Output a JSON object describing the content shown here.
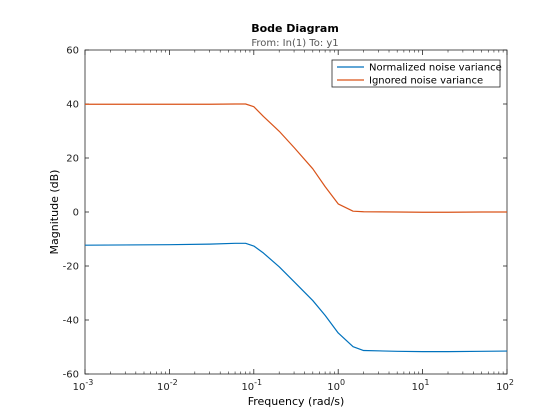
{
  "chart_data": {
    "type": "line",
    "title": "Bode Diagram",
    "subtitle": "From: In(1)  To: y1",
    "xlabel": "Frequency  (rad/s)",
    "ylabel": "Magnitude (dB)",
    "xscale": "log",
    "xlim": [
      0.001,
      100
    ],
    "ylim": [
      -60,
      60
    ],
    "x_tick_labels": [
      {
        "base": "10",
        "exp": "-3"
      },
      {
        "base": "10",
        "exp": "-2"
      },
      {
        "base": "10",
        "exp": "-1"
      },
      {
        "base": "10",
        "exp": "0"
      },
      {
        "base": "10",
        "exp": "1"
      },
      {
        "base": "10",
        "exp": "2"
      }
    ],
    "y_ticks": [
      -60,
      -40,
      -20,
      0,
      20,
      40,
      60
    ],
    "grid": false,
    "legend_position": "top-right",
    "series": [
      {
        "name": "Normalized noise variance",
        "color": "#0072BD",
        "x": [
          0.001,
          0.01,
          0.03,
          0.06,
          0.08,
          0.1,
          0.13,
          0.2,
          0.3,
          0.5,
          0.7,
          1.0,
          1.5,
          2.0,
          5,
          10,
          20,
          50,
          100
        ],
        "y": [
          -12.3,
          -12.1,
          -11.9,
          -11.6,
          -11.6,
          -12.6,
          -15.2,
          -20.3,
          -25.8,
          -32.8,
          -38.3,
          -44.8,
          -49.9,
          -51.3,
          -51.6,
          -51.7,
          -51.7,
          -51.6,
          -51.5
        ]
      },
      {
        "name": "Ignored noise variance",
        "color": "#D95319",
        "x": [
          0.001,
          0.01,
          0.03,
          0.06,
          0.08,
          0.1,
          0.13,
          0.2,
          0.3,
          0.5,
          0.7,
          1.0,
          1.5,
          2.0,
          5,
          10,
          20,
          50,
          100
        ],
        "y": [
          39.9,
          39.9,
          39.9,
          40.0,
          40.0,
          39.0,
          35.4,
          29.9,
          23.9,
          16.0,
          9.4,
          3.0,
          0.3,
          0.1,
          0.0,
          -0.1,
          -0.1,
          0.0,
          0.0
        ]
      }
    ]
  }
}
